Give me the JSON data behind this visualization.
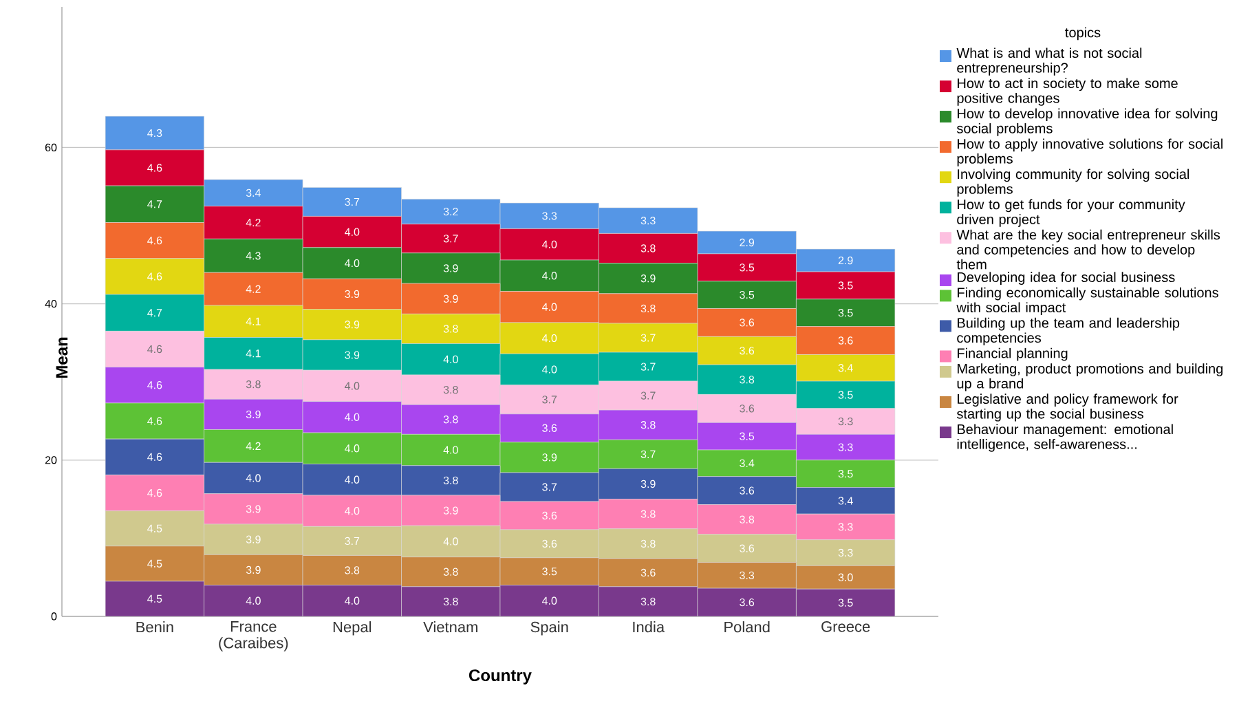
{
  "chart_data": {
    "type": "bar",
    "stacked": true,
    "xlabel": "Country",
    "ylabel": "Mean",
    "legend_title": "topics",
    "categories": [
      "Benin",
      "France (Caraibes)",
      "Nepal",
      "Vietnam",
      "Spain",
      "India",
      "Poland",
      "Greece"
    ],
    "ylim": [
      0,
      78
    ],
    "yticks": [
      0,
      20,
      40,
      60
    ],
    "grid": "y",
    "legend": "right",
    "series": [
      {
        "name": "Behaviour management: emotional intelligence, self-awareness...",
        "color": "#79398c",
        "values": [
          4.5,
          4.0,
          4.0,
          3.8,
          4.0,
          3.8,
          3.6,
          3.5
        ],
        "value_labels": [
          "4.5",
          "4.0",
          "4.0",
          "3.8",
          "4.0",
          "3.8",
          "3.6",
          "3.5"
        ]
      },
      {
        "name": "Legislative and policy framework for starting up the social business",
        "color": "#c98641",
        "values": [
          4.5,
          3.9,
          3.8,
          3.8,
          3.5,
          3.6,
          3.3,
          3.0
        ],
        "value_labels": [
          "4.5",
          "3.9",
          "3.8",
          "3.8",
          "3.5",
          "3.6",
          "3.3",
          "3.0"
        ]
      },
      {
        "name": "Marketing, product promotions and building up a brand",
        "color": "#d0c98e",
        "values": [
          4.5,
          3.9,
          3.7,
          4.0,
          3.6,
          3.8,
          3.6,
          3.3
        ],
        "value_labels": [
          "4.5",
          "3.9",
          "3.7",
          "4.0",
          "3.6",
          "3.8",
          "3.6",
          "3.3"
        ]
      },
      {
        "name": "Financial planning",
        "color": "#fe7fb3",
        "values": [
          4.6,
          3.9,
          4.0,
          3.9,
          3.6,
          3.8,
          3.8,
          3.3
        ],
        "value_labels": [
          "4.6",
          "3.9",
          "4.0",
          "3.9",
          "3.6",
          "3.8",
          "3.8",
          "3.3"
        ]
      },
      {
        "name": "Building up the team and leadership competencies",
        "color": "#3e5ba8",
        "values": [
          4.6,
          4.0,
          4.0,
          3.8,
          3.7,
          3.9,
          3.6,
          3.4
        ],
        "value_labels": [
          "4.6",
          "4.0",
          "4.0",
          "3.8",
          "3.7",
          "3.9",
          "3.6",
          "3.4"
        ]
      },
      {
        "name": "Finding economically sustainable solutions with social impact",
        "color": "#5dc236",
        "values": [
          4.6,
          4.2,
          4.0,
          4.0,
          3.9,
          3.7,
          3.4,
          3.5
        ],
        "value_labels": [
          "4.6",
          "4.2",
          "4.0",
          "4.0",
          "3.9",
          "3.7",
          "3.4",
          "3.5"
        ]
      },
      {
        "name": "Developing idea for social business",
        "color": "#a946ef",
        "values": [
          4.6,
          3.9,
          4.0,
          3.8,
          3.6,
          3.8,
          3.5,
          3.3
        ],
        "value_labels": [
          "4.6",
          "3.9",
          "4.0",
          "3.8",
          "3.6",
          "3.8",
          "3.5",
          "3.3"
        ]
      },
      {
        "name": "What are the key social entrepreneur skills and competencies and how to develop them",
        "color": "#fdc0e0",
        "values": [
          4.6,
          3.8,
          4.0,
          3.8,
          3.7,
          3.7,
          3.6,
          3.3
        ],
        "value_labels": [
          "4.6",
          "3.8",
          "4.0",
          "3.8",
          "3.7",
          "3.7",
          "3.6",
          "3.3"
        ]
      },
      {
        "name": "How to get funds for your community driven project",
        "color": "#00b29d",
        "values": [
          4.7,
          4.1,
          3.9,
          4.0,
          4.0,
          3.7,
          3.8,
          3.5
        ],
        "value_labels": [
          "4.7",
          "4.1",
          "3.9",
          "4.0",
          "4.0",
          "3.7",
          "3.8",
          "3.5"
        ]
      },
      {
        "name": "Involving community for solving social problems",
        "color": "#e2d712",
        "values": [
          4.6,
          4.1,
          3.9,
          3.8,
          4.0,
          3.7,
          3.6,
          3.4
        ],
        "value_labels": [
          "4.6",
          "4.1",
          "3.9",
          "3.8",
          "4.0",
          "3.7",
          "3.6",
          "3.4"
        ]
      },
      {
        "name": "How to apply innovative solutions for social problems",
        "color": "#f26a2e",
        "values": [
          4.6,
          4.2,
          3.9,
          3.9,
          4.0,
          3.8,
          3.6,
          3.6
        ],
        "value_labels": [
          "4.6",
          "4.2",
          "3.9",
          "3.9",
          "4.0",
          "3.8",
          "3.6",
          "3.6"
        ]
      },
      {
        "name": "How to develop innovative idea for solving social problems",
        "color": "#2b8a2b",
        "values": [
          4.7,
          4.3,
          4.0,
          3.9,
          4.0,
          3.9,
          3.5,
          3.5
        ],
        "value_labels": [
          "4.7",
          "4.3",
          "4.0",
          "3.9",
          "4.0",
          "3.9",
          "3.5",
          "3.5"
        ]
      },
      {
        "name": "How to act in society to make some positive changes",
        "color": "#d50032",
        "values": [
          4.6,
          4.2,
          4.0,
          3.7,
          4.0,
          3.8,
          3.5,
          3.5
        ],
        "value_labels": [
          "4.6",
          "4.2",
          "4.0",
          "3.7",
          "4.0",
          "3.8",
          "3.5",
          "3.5"
        ]
      },
      {
        "name": "What is and what is not social entrepreneurship?",
        "color": "#5596e6",
        "values": [
          4.3,
          3.4,
          3.7,
          3.2,
          3.3,
          3.3,
          2.9,
          2.9
        ],
        "value_labels": [
          "4.3",
          "3.4",
          "3.7",
          "3.2",
          "3.3",
          "3.3",
          "2.9",
          "2.9"
        ]
      }
    ]
  }
}
